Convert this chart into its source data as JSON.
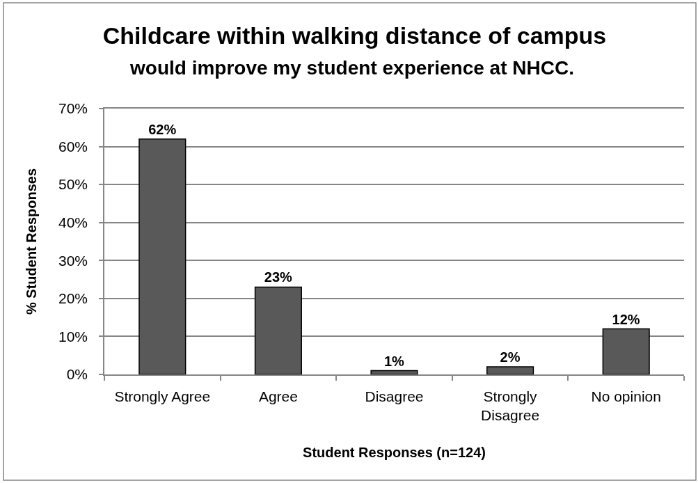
{
  "chart_data": {
    "type": "bar",
    "title": "Childcare within walking distance of campus",
    "subtitle": "would improve my student experience at NHCC.",
    "xlabel": "Student Responses (n=124)",
    "ylabel": "% Student Responses",
    "categories": [
      "Strongly Agree",
      "Agree",
      "Disagree",
      "Strongly Disagree",
      "No opinion"
    ],
    "values": [
      62,
      23,
      1,
      2,
      12
    ],
    "value_labels": [
      "62%",
      "23%",
      "1%",
      "2%",
      "12%"
    ],
    "color": "#595959",
    "ylim": [
      0,
      70
    ],
    "yticks": [
      {
        "value": 0,
        "label": "0%"
      },
      {
        "value": 10,
        "label": "10%"
      },
      {
        "value": 20,
        "label": "20%"
      },
      {
        "value": 30,
        "label": "30%"
      },
      {
        "value": 40,
        "label": "40%"
      },
      {
        "value": 50,
        "label": "50%"
      },
      {
        "value": 60,
        "label": "60%"
      },
      {
        "value": 70,
        "label": "70%"
      }
    ],
    "grid": "y"
  }
}
